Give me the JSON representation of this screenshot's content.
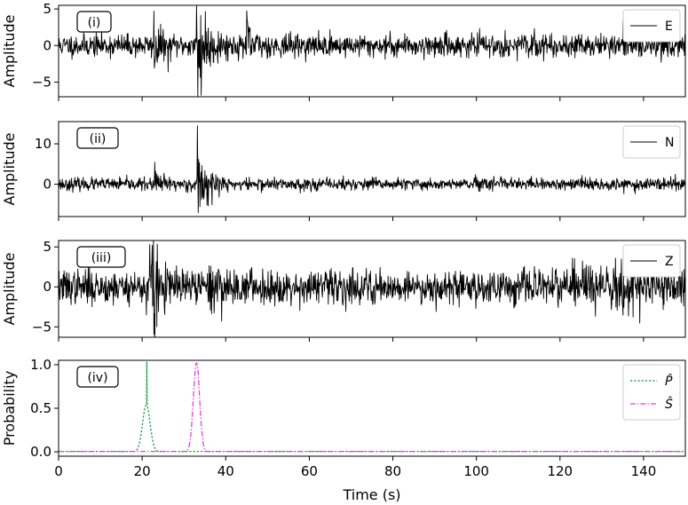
{
  "chart_data": [
    {
      "type": "line",
      "panel_label": "(i)",
      "ylabel": "Amplitude",
      "xlim": [
        0,
        150
      ],
      "ylim": [
        -7,
        5.5
      ],
      "yticks": [
        5,
        0,
        -5
      ],
      "ytick_labels": [
        "5",
        "0",
        "−5"
      ],
      "legend": {
        "placement": "top-right",
        "entries": [
          {
            "label": "E",
            "color": "#000000",
            "dash": "solid"
          }
        ]
      },
      "series": [
        {
          "name": "E",
          "color": "#000000",
          "trace": {
            "seed": 11,
            "samples": 1500,
            "noise": 0.75,
            "bursts": [
              {
                "t": 22.8,
                "amp": 2.6,
                "dur": 0.9
              },
              {
                "t": 33.3,
                "amp": 4.4,
                "dur": 2.0
              },
              {
                "t": 45.0,
                "amp": 1.3,
                "dur": 1.6
              }
            ],
            "peaks": [
              {
                "t": 33.0,
                "v": 5.4
              },
              {
                "t": 33.35,
                "v": -6.9
              },
              {
                "t": 22.8,
                "v": 4.7
              },
              {
                "t": 22.9,
                "v": -3.1
              },
              {
                "t": 45.2,
                "v": 3.2
              },
              {
                "t": 26.2,
                "v": -3.6
              }
            ]
          }
        }
      ]
    },
    {
      "type": "line",
      "panel_label": "(ii)",
      "ylabel": "Amplitude",
      "xlim": [
        0,
        150
      ],
      "ylim": [
        -8,
        15.5
      ],
      "yticks": [
        10,
        0
      ],
      "ytick_labels": [
        "10",
        "0"
      ],
      "legend": {
        "placement": "top-right",
        "entries": [
          {
            "label": "N",
            "color": "#000000",
            "dash": "solid"
          }
        ]
      },
      "series": [
        {
          "name": "N",
          "color": "#000000",
          "trace": {
            "seed": 23,
            "samples": 1500,
            "noise": 0.75,
            "bursts": [
              {
                "t": 23.0,
                "amp": 1.5,
                "dur": 2.0
              },
              {
                "t": 33.4,
                "amp": 3.5,
                "dur": 2.6
              }
            ],
            "peaks": [
              {
                "t": 33.2,
                "v": 14.5
              },
              {
                "t": 33.45,
                "v": -7.0
              },
              {
                "t": 33.7,
                "v": 5.3
              },
              {
                "t": 23.2,
                "v": 3.2
              }
            ]
          }
        }
      ]
    },
    {
      "type": "line",
      "panel_label": "(iii)",
      "ylabel": "Amplitude",
      "xlim": [
        0,
        150
      ],
      "ylim": [
        -6.3,
        5.8
      ],
      "yticks": [
        5,
        0,
        -5
      ],
      "ytick_labels": [
        "5",
        "0",
        "−5"
      ],
      "legend": {
        "placement": "top-right",
        "entries": [
          {
            "label": "Z",
            "color": "#000000",
            "dash": "solid"
          }
        ]
      },
      "series": [
        {
          "name": "Z",
          "color": "#000000",
          "trace": {
            "seed": 37,
            "samples": 1500,
            "noise": 1.05,
            "bursts": [
              {
                "t": 22.2,
                "amp": 4.0,
                "dur": 1.4
              },
              {
                "t": 36.0,
                "amp": 1.3,
                "dur": 2.2
              },
              {
                "t": 123.0,
                "amp": 1.1,
                "dur": 6.0
              },
              {
                "t": 133.0,
                "amp": 0.9,
                "dur": 5.0
              }
            ],
            "peaks": [
              {
                "t": 21.8,
                "v": 5.3
              },
              {
                "t": 22.4,
                "v": 5.2
              },
              {
                "t": 22.8,
                "v": -5.9
              },
              {
                "t": 21.0,
                "v": -3.5
              },
              {
                "t": 36.3,
                "v": -2.9
              },
              {
                "t": 123.0,
                "v": 3.6
              },
              {
                "t": 133.3,
                "v": 3.6
              }
            ]
          }
        }
      ]
    },
    {
      "type": "line",
      "panel_label": "(iv)",
      "ylabel": "Probability",
      "xlabel": "Time (s)",
      "xlim": [
        0,
        150
      ],
      "ylim": [
        -0.05,
        1.05
      ],
      "yticks": [
        1.0,
        0.5,
        0.0
      ],
      "ytick_labels": [
        "1.0",
        "0.5",
        "0.0"
      ],
      "xticks": [
        0,
        20,
        40,
        60,
        80,
        100,
        120,
        140
      ],
      "xtick_labels": [
        "0",
        "20",
        "40",
        "60",
        "80",
        "100",
        "120",
        "140"
      ],
      "legend": {
        "placement": "top-right",
        "entries": [
          {
            "label": "P̂",
            "color": "#1a9641",
            "dash": "dotted"
          },
          {
            "label": "Ŝ",
            "color": "#e040e0",
            "dash": "dashdot"
          }
        ]
      },
      "series": [
        {
          "name": "P̂",
          "color": "#1a9641",
          "dash": "dotted",
          "gaussians": [
            {
              "center": 21.0,
              "height": 0.54,
              "sigma": 0.9
            },
            {
              "center": 21.1,
              "height": 1.05,
              "sigma": 0.07
            }
          ],
          "baseline": 0.005
        },
        {
          "name": "Ŝ",
          "color": "#e040e0",
          "dash": "dashdot",
          "gaussians": [
            {
              "center": 33.0,
              "height": 1.02,
              "sigma": 0.75
            },
            {
              "center": 33.25,
              "height": 0.95,
              "sigma": 0.5
            }
          ],
          "baseline": 0.005
        }
      ]
    }
  ]
}
